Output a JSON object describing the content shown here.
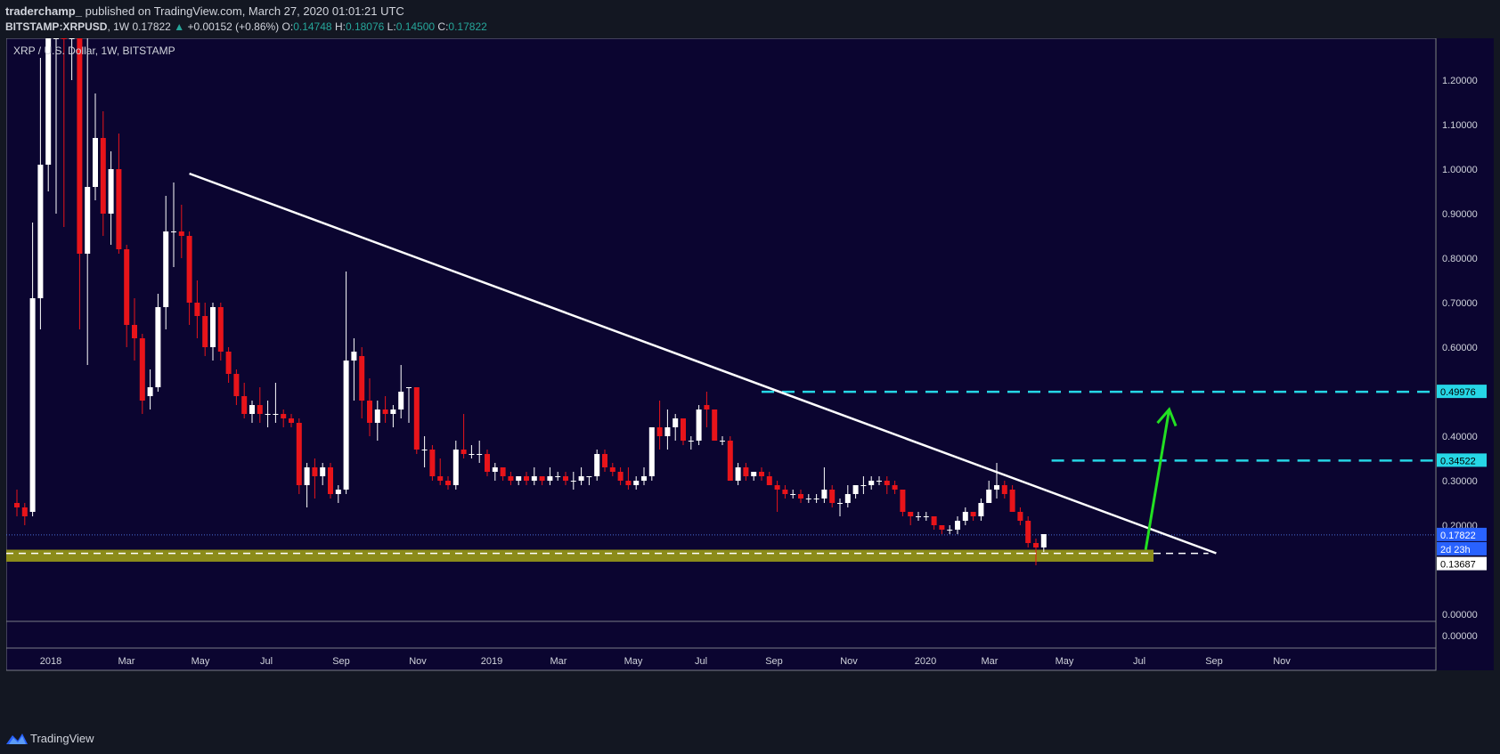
{
  "header": {
    "author": "traderchamp_",
    "published": "published on TradingView.com, March 27, 2020 01:01:21 UTC",
    "symbol": "BITSTAMP:XRPUSD",
    "interval": "1W",
    "last": "0.17822",
    "change": "+0.00152 (+0.86%)",
    "o_label": "O:",
    "o": "0.14748",
    "h_label": "H:",
    "h": "0.18076",
    "l_label": "L:",
    "l": "0.14500",
    "c_label": "C:",
    "c": "0.17822"
  },
  "footer": {
    "brand": "TradingView"
  },
  "colors": {
    "background": "#0b0530",
    "up": "#ffffff",
    "down": "#e8141a",
    "trendline": "#ffffff",
    "resistance": "#26d7e6",
    "support_zone": "#8b8b1a",
    "arrow": "#22e022",
    "axis_text": "#d1d4dc"
  },
  "chart_data": {
    "type": "candlestick",
    "title": "XRP / U.S. Dollar, 1W, BITSTAMP",
    "y_ticks": [
      "1.20000",
      "1.10000",
      "1.00000",
      "0.90000",
      "0.80000",
      "0.70000",
      "0.60000",
      "0.40000",
      "0.30000",
      "0.20000",
      "0.00000"
    ],
    "lower_pane_tick": "0.00000",
    "x_ticks": [
      "2018",
      "Mar",
      "May",
      "Jul",
      "Sep",
      "Nov",
      "2019",
      "Mar",
      "May",
      "Jul",
      "Sep",
      "Nov",
      "2020",
      "Mar",
      "May",
      "Jul",
      "Sep",
      "Nov"
    ],
    "ylim": [
      0,
      1.3
    ],
    "price_labels": [
      {
        "value": 0.49976,
        "text": "0.49976",
        "style": "resistance"
      },
      {
        "value": 0.34522,
        "text": "0.34522",
        "style": "resistance"
      },
      {
        "value": 0.17822,
        "text": "0.17822",
        "style": "last"
      },
      {
        "text": "2d 23h",
        "style": "countdown"
      },
      {
        "value": 0.13687,
        "text": "0.13687",
        "style": "support"
      }
    ],
    "candles": [
      {
        "o": 0.25,
        "h": 0.28,
        "l": 0.22,
        "c": 0.24
      },
      {
        "o": 0.24,
        "h": 0.25,
        "l": 0.2,
        "c": 0.22
      },
      {
        "o": 0.23,
        "h": 0.88,
        "l": 0.22,
        "c": 0.71
      },
      {
        "o": 0.71,
        "h": 1.25,
        "l": 0.64,
        "c": 1.01
      },
      {
        "o": 1.01,
        "h": 1.5,
        "l": 0.95,
        "c": 1.35
      },
      {
        "o": 1.35,
        "h": 1.55,
        "l": 0.9,
        "c": 1.4
      },
      {
        "o": 1.4,
        "h": 1.5,
        "l": 0.87,
        "c": 1.3
      },
      {
        "o": 1.3,
        "h": 1.55,
        "l": 1.2,
        "c": 1.3
      },
      {
        "o": 1.3,
        "h": 1.35,
        "l": 0.64,
        "c": 0.81
      },
      {
        "o": 0.81,
        "h": 1.3,
        "l": 0.56,
        "c": 0.96
      },
      {
        "o": 0.96,
        "h": 1.17,
        "l": 0.93,
        "c": 1.07
      },
      {
        "o": 1.07,
        "h": 1.13,
        "l": 0.85,
        "c": 0.9
      },
      {
        "o": 0.9,
        "h": 1.04,
        "l": 0.83,
        "c": 1.0
      },
      {
        "o": 1.0,
        "h": 1.08,
        "l": 0.81,
        "c": 0.82
      },
      {
        "o": 0.82,
        "h": 0.83,
        "l": 0.6,
        "c": 0.65
      },
      {
        "o": 0.65,
        "h": 0.71,
        "l": 0.57,
        "c": 0.62
      },
      {
        "o": 0.62,
        "h": 0.63,
        "l": 0.45,
        "c": 0.48
      },
      {
        "o": 0.49,
        "h": 0.55,
        "l": 0.46,
        "c": 0.51
      },
      {
        "o": 0.51,
        "h": 0.72,
        "l": 0.5,
        "c": 0.69
      },
      {
        "o": 0.69,
        "h": 0.94,
        "l": 0.64,
        "c": 0.86
      },
      {
        "o": 0.86,
        "h": 0.97,
        "l": 0.78,
        "c": 0.86
      },
      {
        "o": 0.86,
        "h": 0.92,
        "l": 0.8,
        "c": 0.85
      },
      {
        "o": 0.85,
        "h": 0.86,
        "l": 0.65,
        "c": 0.7
      },
      {
        "o": 0.7,
        "h": 0.75,
        "l": 0.62,
        "c": 0.67
      },
      {
        "o": 0.67,
        "h": 0.7,
        "l": 0.58,
        "c": 0.6
      },
      {
        "o": 0.6,
        "h": 0.7,
        "l": 0.57,
        "c": 0.69
      },
      {
        "o": 0.69,
        "h": 0.7,
        "l": 0.57,
        "c": 0.59
      },
      {
        "o": 0.59,
        "h": 0.6,
        "l": 0.52,
        "c": 0.54
      },
      {
        "o": 0.54,
        "h": 0.55,
        "l": 0.47,
        "c": 0.49
      },
      {
        "o": 0.49,
        "h": 0.52,
        "l": 0.44,
        "c": 0.45
      },
      {
        "o": 0.45,
        "h": 0.48,
        "l": 0.43,
        "c": 0.47
      },
      {
        "o": 0.47,
        "h": 0.51,
        "l": 0.43,
        "c": 0.45
      },
      {
        "o": 0.45,
        "h": 0.48,
        "l": 0.42,
        "c": 0.45
      },
      {
        "o": 0.45,
        "h": 0.52,
        "l": 0.43,
        "c": 0.45
      },
      {
        "o": 0.45,
        "h": 0.46,
        "l": 0.42,
        "c": 0.44
      },
      {
        "o": 0.44,
        "h": 0.45,
        "l": 0.42,
        "c": 0.43
      },
      {
        "o": 0.43,
        "h": 0.44,
        "l": 0.27,
        "c": 0.29
      },
      {
        "o": 0.29,
        "h": 0.34,
        "l": 0.24,
        "c": 0.33
      },
      {
        "o": 0.33,
        "h": 0.35,
        "l": 0.26,
        "c": 0.31
      },
      {
        "o": 0.31,
        "h": 0.34,
        "l": 0.29,
        "c": 0.33
      },
      {
        "o": 0.33,
        "h": 0.34,
        "l": 0.26,
        "c": 0.27
      },
      {
        "o": 0.27,
        "h": 0.29,
        "l": 0.25,
        "c": 0.28
      },
      {
        "o": 0.28,
        "h": 0.77,
        "l": 0.27,
        "c": 0.57
      },
      {
        "o": 0.57,
        "h": 0.62,
        "l": 0.48,
        "c": 0.59
      },
      {
        "o": 0.58,
        "h": 0.6,
        "l": 0.44,
        "c": 0.48
      },
      {
        "o": 0.48,
        "h": 0.53,
        "l": 0.4,
        "c": 0.43
      },
      {
        "o": 0.43,
        "h": 0.48,
        "l": 0.39,
        "c": 0.46
      },
      {
        "o": 0.46,
        "h": 0.49,
        "l": 0.43,
        "c": 0.45
      },
      {
        "o": 0.45,
        "h": 0.47,
        "l": 0.42,
        "c": 0.46
      },
      {
        "o": 0.46,
        "h": 0.56,
        "l": 0.44,
        "c": 0.5
      },
      {
        "o": 0.51,
        "h": 0.51,
        "l": 0.43,
        "c": 0.51
      },
      {
        "o": 0.51,
        "h": 0.51,
        "l": 0.36,
        "c": 0.37
      },
      {
        "o": 0.37,
        "h": 0.4,
        "l": 0.33,
        "c": 0.37
      },
      {
        "o": 0.37,
        "h": 0.38,
        "l": 0.3,
        "c": 0.31
      },
      {
        "o": 0.31,
        "h": 0.35,
        "l": 0.29,
        "c": 0.3
      },
      {
        "o": 0.3,
        "h": 0.31,
        "l": 0.28,
        "c": 0.29
      },
      {
        "o": 0.29,
        "h": 0.39,
        "l": 0.28,
        "c": 0.37
      },
      {
        "o": 0.37,
        "h": 0.45,
        "l": 0.35,
        "c": 0.36
      },
      {
        "o": 0.36,
        "h": 0.38,
        "l": 0.35,
        "c": 0.36
      },
      {
        "o": 0.36,
        "h": 0.39,
        "l": 0.34,
        "c": 0.36
      },
      {
        "o": 0.36,
        "h": 0.37,
        "l": 0.31,
        "c": 0.32
      },
      {
        "o": 0.32,
        "h": 0.34,
        "l": 0.3,
        "c": 0.33
      },
      {
        "o": 0.33,
        "h": 0.33,
        "l": 0.3,
        "c": 0.31
      },
      {
        "o": 0.31,
        "h": 0.32,
        "l": 0.29,
        "c": 0.3
      },
      {
        "o": 0.3,
        "h": 0.31,
        "l": 0.29,
        "c": 0.31
      },
      {
        "o": 0.31,
        "h": 0.32,
        "l": 0.29,
        "c": 0.3
      },
      {
        "o": 0.3,
        "h": 0.33,
        "l": 0.29,
        "c": 0.31
      },
      {
        "o": 0.31,
        "h": 0.31,
        "l": 0.29,
        "c": 0.3
      },
      {
        "o": 0.3,
        "h": 0.33,
        "l": 0.29,
        "c": 0.31
      },
      {
        "o": 0.31,
        "h": 0.32,
        "l": 0.3,
        "c": 0.31
      },
      {
        "o": 0.31,
        "h": 0.32,
        "l": 0.29,
        "c": 0.3
      },
      {
        "o": 0.3,
        "h": 0.32,
        "l": 0.28,
        "c": 0.3
      },
      {
        "o": 0.3,
        "h": 0.33,
        "l": 0.29,
        "c": 0.31
      },
      {
        "o": 0.31,
        "h": 0.31,
        "l": 0.29,
        "c": 0.31
      },
      {
        "o": 0.31,
        "h": 0.37,
        "l": 0.3,
        "c": 0.36
      },
      {
        "o": 0.36,
        "h": 0.37,
        "l": 0.32,
        "c": 0.33
      },
      {
        "o": 0.33,
        "h": 0.34,
        "l": 0.31,
        "c": 0.32
      },
      {
        "o": 0.32,
        "h": 0.33,
        "l": 0.29,
        "c": 0.3
      },
      {
        "o": 0.3,
        "h": 0.33,
        "l": 0.28,
        "c": 0.29
      },
      {
        "o": 0.29,
        "h": 0.31,
        "l": 0.28,
        "c": 0.3
      },
      {
        "o": 0.3,
        "h": 0.33,
        "l": 0.29,
        "c": 0.31
      },
      {
        "o": 0.31,
        "h": 0.42,
        "l": 0.3,
        "c": 0.42
      },
      {
        "o": 0.42,
        "h": 0.48,
        "l": 0.37,
        "c": 0.4
      },
      {
        "o": 0.4,
        "h": 0.46,
        "l": 0.37,
        "c": 0.42
      },
      {
        "o": 0.42,
        "h": 0.45,
        "l": 0.39,
        "c": 0.44
      },
      {
        "o": 0.44,
        "h": 0.44,
        "l": 0.38,
        "c": 0.39
      },
      {
        "o": 0.39,
        "h": 0.4,
        "l": 0.37,
        "c": 0.39
      },
      {
        "o": 0.39,
        "h": 0.47,
        "l": 0.38,
        "c": 0.46
      },
      {
        "o": 0.47,
        "h": 0.5,
        "l": 0.42,
        "c": 0.46
      },
      {
        "o": 0.46,
        "h": 0.46,
        "l": 0.39,
        "c": 0.39
      },
      {
        "o": 0.39,
        "h": 0.4,
        "l": 0.38,
        "c": 0.39
      },
      {
        "o": 0.39,
        "h": 0.4,
        "l": 0.3,
        "c": 0.3
      },
      {
        "o": 0.3,
        "h": 0.34,
        "l": 0.29,
        "c": 0.33
      },
      {
        "o": 0.33,
        "h": 0.34,
        "l": 0.3,
        "c": 0.31
      },
      {
        "o": 0.31,
        "h": 0.32,
        "l": 0.3,
        "c": 0.32
      },
      {
        "o": 0.32,
        "h": 0.33,
        "l": 0.3,
        "c": 0.31
      },
      {
        "o": 0.31,
        "h": 0.32,
        "l": 0.29,
        "c": 0.29
      },
      {
        "o": 0.29,
        "h": 0.3,
        "l": 0.23,
        "c": 0.28
      },
      {
        "o": 0.28,
        "h": 0.29,
        "l": 0.26,
        "c": 0.27
      },
      {
        "o": 0.27,
        "h": 0.28,
        "l": 0.26,
        "c": 0.27
      },
      {
        "o": 0.27,
        "h": 0.28,
        "l": 0.25,
        "c": 0.26
      },
      {
        "o": 0.26,
        "h": 0.27,
        "l": 0.25,
        "c": 0.26
      },
      {
        "o": 0.26,
        "h": 0.27,
        "l": 0.25,
        "c": 0.26
      },
      {
        "o": 0.26,
        "h": 0.33,
        "l": 0.25,
        "c": 0.28
      },
      {
        "o": 0.28,
        "h": 0.29,
        "l": 0.24,
        "c": 0.25
      },
      {
        "o": 0.25,
        "h": 0.26,
        "l": 0.22,
        "c": 0.25
      },
      {
        "o": 0.25,
        "h": 0.29,
        "l": 0.24,
        "c": 0.27
      },
      {
        "o": 0.27,
        "h": 0.29,
        "l": 0.26,
        "c": 0.29
      },
      {
        "o": 0.29,
        "h": 0.31,
        "l": 0.27,
        "c": 0.29
      },
      {
        "o": 0.29,
        "h": 0.31,
        "l": 0.28,
        "c": 0.3
      },
      {
        "o": 0.3,
        "h": 0.31,
        "l": 0.29,
        "c": 0.3
      },
      {
        "o": 0.3,
        "h": 0.31,
        "l": 0.27,
        "c": 0.29
      },
      {
        "o": 0.29,
        "h": 0.3,
        "l": 0.27,
        "c": 0.28
      },
      {
        "o": 0.28,
        "h": 0.28,
        "l": 0.22,
        "c": 0.23
      },
      {
        "o": 0.23,
        "h": 0.23,
        "l": 0.2,
        "c": 0.22
      },
      {
        "o": 0.22,
        "h": 0.23,
        "l": 0.21,
        "c": 0.22
      },
      {
        "o": 0.22,
        "h": 0.23,
        "l": 0.21,
        "c": 0.22
      },
      {
        "o": 0.22,
        "h": 0.22,
        "l": 0.19,
        "c": 0.2
      },
      {
        "o": 0.2,
        "h": 0.2,
        "l": 0.18,
        "c": 0.19
      },
      {
        "o": 0.19,
        "h": 0.2,
        "l": 0.18,
        "c": 0.19
      },
      {
        "o": 0.19,
        "h": 0.22,
        "l": 0.18,
        "c": 0.21
      },
      {
        "o": 0.21,
        "h": 0.24,
        "l": 0.2,
        "c": 0.23
      },
      {
        "o": 0.23,
        "h": 0.23,
        "l": 0.21,
        "c": 0.22
      },
      {
        "o": 0.22,
        "h": 0.26,
        "l": 0.21,
        "c": 0.25
      },
      {
        "o": 0.25,
        "h": 0.3,
        "l": 0.25,
        "c": 0.28
      },
      {
        "o": 0.28,
        "h": 0.34,
        "l": 0.26,
        "c": 0.29
      },
      {
        "o": 0.29,
        "h": 0.3,
        "l": 0.26,
        "c": 0.27
      },
      {
        "o": 0.28,
        "h": 0.29,
        "l": 0.23,
        "c": 0.23
      },
      {
        "o": 0.23,
        "h": 0.24,
        "l": 0.2,
        "c": 0.21
      },
      {
        "o": 0.21,
        "h": 0.22,
        "l": 0.15,
        "c": 0.16
      },
      {
        "o": 0.16,
        "h": 0.17,
        "l": 0.11,
        "c": 0.15
      },
      {
        "o": 0.15,
        "h": 0.18,
        "l": 0.14,
        "c": 0.18
      }
    ],
    "annotations": {
      "trendline": [
        {
          "bar": 22.0,
          "price": 0.99
        },
        {
          "bar": 153.0,
          "price": 0.137
        }
      ],
      "resistance_lines": [
        {
          "price": 0.49976,
          "from_bar": 95.0
        },
        {
          "price": 0.34522,
          "from_bar": 132.0
        }
      ],
      "last_price_line": 0.17822,
      "support_zone": {
        "low": 0.118,
        "high": 0.145,
        "to_bar": 145.0
      },
      "support_dashed": {
        "price": 0.13687,
        "to_bar": 152.0
      },
      "arrow": [
        {
          "bar": 144.0,
          "price": 0.145
        },
        {
          "bar": 147.0,
          "price": 0.46
        }
      ]
    }
  }
}
